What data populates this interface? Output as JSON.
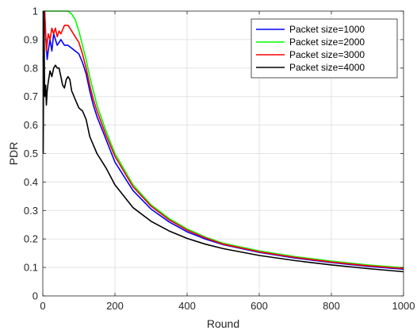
{
  "chart_data": {
    "type": "line",
    "title": "",
    "xlabel": "Round",
    "ylabel": "PDR",
    "xlim": [
      0,
      1000
    ],
    "ylim": [
      0,
      1
    ],
    "xticks": [
      0,
      200,
      400,
      600,
      800,
      1000
    ],
    "yticks": [
      0,
      0.1,
      0.2,
      0.3,
      0.4,
      0.5,
      0.6,
      0.7,
      0.8,
      0.9,
      1
    ],
    "grid": true,
    "legend_position": "top-right",
    "series": [
      {
        "name": "Packet size=1000",
        "color": "#0000ff",
        "x": [
          1,
          5,
          8,
          12,
          15,
          20,
          25,
          30,
          40,
          50,
          60,
          70,
          80,
          90,
          100,
          110,
          120,
          130,
          140,
          150,
          175,
          200,
          250,
          300,
          350,
          400,
          450,
          500,
          600,
          700,
          800,
          900,
          1000
        ],
        "y": [
          0.82,
          1.0,
          0.92,
          0.83,
          0.86,
          0.9,
          0.86,
          0.92,
          0.88,
          0.9,
          0.88,
          0.88,
          0.87,
          0.86,
          0.85,
          0.82,
          0.78,
          0.72,
          0.67,
          0.63,
          0.55,
          0.47,
          0.37,
          0.305,
          0.26,
          0.225,
          0.2,
          0.18,
          0.153,
          0.133,
          0.117,
          0.104,
          0.094
        ]
      },
      {
        "name": "Packet size=2000",
        "color": "#00ff00",
        "x": [
          1,
          5,
          10,
          20,
          40,
          60,
          70,
          80,
          90,
          100,
          110,
          120,
          130,
          140,
          150,
          175,
          200,
          250,
          300,
          350,
          400,
          450,
          500,
          600,
          700,
          800,
          900,
          1000
        ],
        "y": [
          0.95,
          1.0,
          1.0,
          1.0,
          1.0,
          1.0,
          1.0,
          0.99,
          0.97,
          0.93,
          0.88,
          0.83,
          0.77,
          0.72,
          0.67,
          0.58,
          0.5,
          0.39,
          0.32,
          0.272,
          0.235,
          0.207,
          0.185,
          0.158,
          0.138,
          0.122,
          0.109,
          0.099
        ]
      },
      {
        "name": "Packet size=3000",
        "color": "#ff0000",
        "x": [
          1,
          5,
          10,
          15,
          20,
          25,
          30,
          35,
          40,
          45,
          50,
          60,
          70,
          80,
          90,
          100,
          110,
          120,
          130,
          140,
          150,
          175,
          200,
          250,
          300,
          350,
          400,
          450,
          500,
          600,
          700,
          800,
          900,
          1000
        ],
        "y": [
          0.86,
          1.0,
          0.86,
          0.92,
          0.9,
          0.94,
          0.92,
          0.94,
          0.91,
          0.93,
          0.92,
          0.95,
          0.95,
          0.93,
          0.91,
          0.89,
          0.85,
          0.8,
          0.74,
          0.69,
          0.65,
          0.565,
          0.49,
          0.383,
          0.315,
          0.267,
          0.231,
          0.204,
          0.182,
          0.155,
          0.135,
          0.119,
          0.106,
          0.096
        ]
      },
      {
        "name": "Packet size=4000",
        "color": "#000000",
        "x": [
          1,
          3,
          5,
          8,
          10,
          12,
          15,
          20,
          25,
          30,
          35,
          40,
          45,
          50,
          55,
          60,
          65,
          70,
          75,
          80,
          90,
          100,
          110,
          120,
          130,
          140,
          150,
          175,
          200,
          250,
          300,
          350,
          400,
          450,
          500,
          600,
          700,
          800,
          900,
          1000
        ],
        "y": [
          0.5,
          1.0,
          0.7,
          0.74,
          0.67,
          0.72,
          0.75,
          0.79,
          0.77,
          0.8,
          0.81,
          0.8,
          0.8,
          0.77,
          0.74,
          0.73,
          0.76,
          0.77,
          0.76,
          0.72,
          0.69,
          0.66,
          0.65,
          0.62,
          0.56,
          0.53,
          0.5,
          0.45,
          0.39,
          0.31,
          0.262,
          0.228,
          0.202,
          0.182,
          0.166,
          0.142,
          0.124,
          0.109,
          0.096,
          0.085
        ]
      }
    ]
  }
}
